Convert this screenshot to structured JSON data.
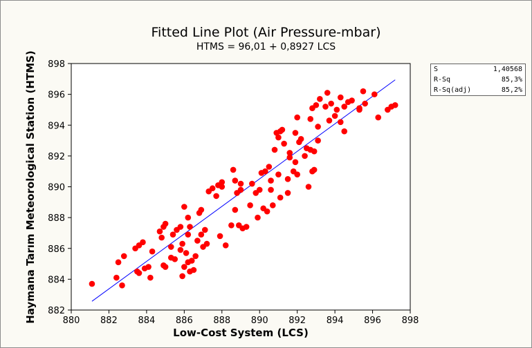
{
  "chart_data": {
    "type": "scatter",
    "title": "Fitted Line Plot (Air Pressure-mbar)",
    "subtitle": "HTMS =  96,01 + 0,8927 LCS",
    "xlabel": "Low-Cost System (LCS)",
    "ylabel": "Haymana Tarım Meteorological Station (HTMS)",
    "xlim": [
      880,
      898
    ],
    "ylim": [
      882,
      898
    ],
    "xticks": [
      "880",
      "882",
      "884",
      "886",
      "888",
      "890",
      "892",
      "894",
      "896",
      "898"
    ],
    "yticks": [
      "882",
      "884",
      "886",
      "888",
      "890",
      "892",
      "894",
      "896",
      "898"
    ],
    "grid": false,
    "fit_line": {
      "intercept": 96.01,
      "slope": 0.8927,
      "x_range": [
        881.1,
        897.2
      ],
      "color": "#0000ff"
    },
    "point_color": "#ff0000",
    "stats": [
      {
        "label": "S",
        "value": "1,40568"
      },
      {
        "label": "R-Sq",
        "value": "85,3%"
      },
      {
        "label": "R-Sq(adj)",
        "value": "85,2%"
      }
    ],
    "points": [
      [
        881.1,
        883.7
      ],
      [
        882.4,
        884.1
      ],
      [
        882.7,
        883.6
      ],
      [
        882.5,
        885.1
      ],
      [
        882.8,
        885.5
      ],
      [
        883.4,
        886.0
      ],
      [
        883.6,
        886.2
      ],
      [
        883.8,
        886.4
      ],
      [
        883.5,
        884.5
      ],
      [
        883.6,
        884.4
      ],
      [
        883.9,
        884.7
      ],
      [
        884.1,
        884.8
      ],
      [
        884.2,
        884.1
      ],
      [
        884.3,
        885.8
      ],
      [
        884.7,
        887.1
      ],
      [
        884.8,
        886.7
      ],
      [
        884.9,
        887.4
      ],
      [
        885.0,
        887.6
      ],
      [
        885.3,
        886.1
      ],
      [
        885.4,
        886.9
      ],
      [
        885.6,
        887.2
      ],
      [
        885.8,
        887.4
      ],
      [
        884.9,
        884.9
      ],
      [
        885.0,
        884.8
      ],
      [
        885.3,
        885.4
      ],
      [
        885.5,
        885.3
      ],
      [
        885.8,
        885.9
      ],
      [
        885.9,
        886.3
      ],
      [
        885.9,
        884.2
      ],
      [
        886.1,
        885.7
      ],
      [
        886.0,
        884.8
      ],
      [
        886.2,
        885.1
      ],
      [
        886.0,
        888.7
      ],
      [
        886.2,
        888.0
      ],
      [
        886.3,
        887.4
      ],
      [
        886.2,
        886.9
      ],
      [
        886.3,
        884.5
      ],
      [
        886.4,
        885.2
      ],
      [
        886.5,
        884.6
      ],
      [
        886.6,
        885.5
      ],
      [
        886.7,
        886.5
      ],
      [
        886.8,
        888.3
      ],
      [
        886.9,
        888.5
      ],
      [
        886.9,
        886.9
      ],
      [
        887.0,
        886.1
      ],
      [
        887.1,
        887.2
      ],
      [
        887.2,
        886.3
      ],
      [
        887.3,
        889.7
      ],
      [
        887.5,
        889.9
      ],
      [
        887.7,
        889.4
      ],
      [
        887.8,
        890.1
      ],
      [
        888.0,
        890.3
      ],
      [
        888.0,
        890.0
      ],
      [
        887.9,
        886.8
      ],
      [
        888.2,
        886.2
      ],
      [
        888.5,
        887.5
      ],
      [
        888.6,
        891.1
      ],
      [
        888.7,
        890.4
      ],
      [
        888.7,
        888.5
      ],
      [
        888.8,
        889.6
      ],
      [
        889.0,
        890.2
      ],
      [
        888.9,
        887.5
      ],
      [
        889.0,
        889.8
      ],
      [
        889.1,
        887.3
      ],
      [
        889.3,
        887.4
      ],
      [
        889.5,
        888.8
      ],
      [
        889.6,
        890.2
      ],
      [
        889.8,
        889.6
      ],
      [
        889.9,
        888.0
      ],
      [
        890.0,
        889.8
      ],
      [
        890.1,
        890.9
      ],
      [
        890.2,
        888.6
      ],
      [
        890.3,
        891.0
      ],
      [
        890.4,
        888.4
      ],
      [
        890.6,
        890.4
      ],
      [
        890.5,
        891.3
      ],
      [
        890.6,
        889.8
      ],
      [
        890.7,
        888.8
      ],
      [
        890.8,
        892.4
      ],
      [
        891.0,
        893.2
      ],
      [
        890.9,
        893.5
      ],
      [
        891.1,
        893.6
      ],
      [
        891.2,
        893.7
      ],
      [
        891.0,
        890.8
      ],
      [
        891.3,
        892.8
      ],
      [
        891.1,
        889.3
      ],
      [
        891.5,
        889.6
      ],
      [
        891.5,
        890.5
      ],
      [
        891.6,
        892.2
      ],
      [
        891.6,
        891.9
      ],
      [
        891.8,
        891.0
      ],
      [
        891.9,
        891.6
      ],
      [
        891.9,
        893.5
      ],
      [
        892.0,
        894.5
      ],
      [
        892.0,
        890.8
      ],
      [
        892.1,
        892.9
      ],
      [
        892.2,
        893.1
      ],
      [
        892.4,
        892.0
      ],
      [
        892.5,
        892.5
      ],
      [
        892.7,
        892.4
      ],
      [
        892.9,
        892.3
      ],
      [
        892.6,
        890.0
      ],
      [
        892.8,
        891.0
      ],
      [
        892.9,
        891.1
      ],
      [
        892.7,
        894.4
      ],
      [
        892.8,
        895.1
      ],
      [
        893.0,
        895.3
      ],
      [
        893.1,
        893.0
      ],
      [
        893.1,
        893.9
      ],
      [
        893.2,
        895.7
      ],
      [
        893.5,
        895.2
      ],
      [
        893.6,
        896.1
      ],
      [
        893.7,
        894.3
      ],
      [
        893.8,
        895.4
      ],
      [
        894.0,
        894.6
      ],
      [
        894.1,
        895.0
      ],
      [
        894.3,
        895.8
      ],
      [
        894.3,
        894.2
      ],
      [
        894.5,
        895.2
      ],
      [
        894.5,
        893.6
      ],
      [
        894.7,
        895.5
      ],
      [
        894.9,
        895.6
      ],
      [
        895.3,
        895.0
      ],
      [
        895.5,
        896.2
      ],
      [
        895.6,
        895.4
      ],
      [
        895.3,
        895.1
      ],
      [
        896.1,
        896.0
      ],
      [
        896.3,
        894.5
      ],
      [
        896.8,
        895.0
      ],
      [
        897.0,
        895.2
      ],
      [
        897.2,
        895.3
      ]
    ]
  }
}
